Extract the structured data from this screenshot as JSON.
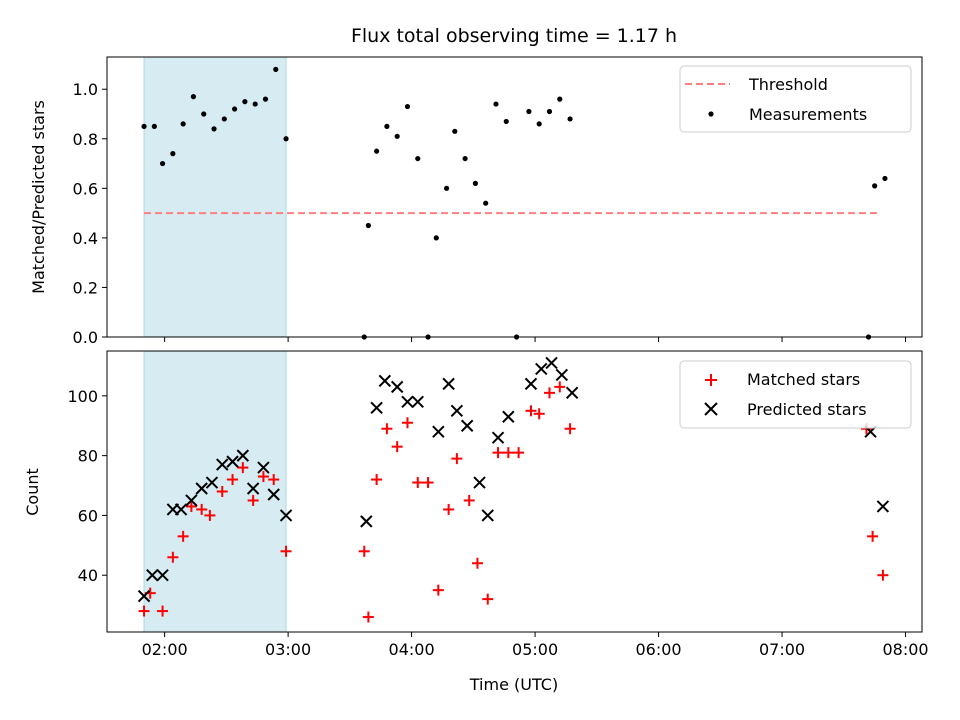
{
  "figure": {
    "title": "Flux total observing time = 1.17 h",
    "xlabel": "Time (UTC)"
  },
  "colors": {
    "shade": "#add8e6",
    "threshold": "#ff7f7f",
    "measurement": "#000000",
    "matched": "#ff0000",
    "predicted": "#000000"
  },
  "chart_data": [
    {
      "type": "scatter",
      "panel": "top",
      "ylabel": "Matched/Predicted stars",
      "xlim": [
        "01:32",
        "08:08"
      ],
      "ylim": [
        0,
        1.13
      ],
      "yticks": [
        0,
        0.2,
        0.4,
        0.6,
        0.8,
        1.0
      ],
      "ytick_labels": [
        "0.0",
        "0.2",
        "0.4",
        "0.6",
        "0.8",
        "1.0"
      ],
      "xticks": [
        "02:00",
        "03:00",
        "04:00",
        "05:00",
        "06:00",
        "07:00",
        "08:00"
      ],
      "shaded_span": [
        "01:50",
        "02:59"
      ],
      "legend": {
        "position": "top-right",
        "entries": [
          "Threshold",
          "Measurements"
        ]
      },
      "threshold": {
        "name": "Threshold",
        "y": 0.5,
        "x": [
          "01:50",
          "07:48"
        ],
        "style": "dashed"
      },
      "series": [
        {
          "name": "Measurements",
          "marker": "dot",
          "points": [
            [
              "01:50",
              0.85
            ],
            [
              "01:55",
              0.85
            ],
            [
              "01:59",
              0.7
            ],
            [
              "02:04",
              0.74
            ],
            [
              "02:09",
              0.86
            ],
            [
              "02:14",
              0.97
            ],
            [
              "02:19",
              0.9
            ],
            [
              "02:24",
              0.84
            ],
            [
              "02:29",
              0.88
            ],
            [
              "02:34",
              0.92
            ],
            [
              "02:39",
              0.95
            ],
            [
              "02:44",
              0.94
            ],
            [
              "02:49",
              0.96
            ],
            [
              "02:54",
              1.08
            ],
            [
              "02:59",
              0.8
            ],
            [
              "03:37",
              0.0
            ],
            [
              "03:39",
              0.45
            ],
            [
              "03:43",
              0.75
            ],
            [
              "03:48",
              0.85
            ],
            [
              "03:53",
              0.81
            ],
            [
              "03:58",
              0.93
            ],
            [
              "04:03",
              0.72
            ],
            [
              "04:08",
              0.0
            ],
            [
              "04:12",
              0.4
            ],
            [
              "04:17",
              0.6
            ],
            [
              "04:21",
              0.83
            ],
            [
              "04:26",
              0.72
            ],
            [
              "04:31",
              0.62
            ],
            [
              "04:36",
              0.54
            ],
            [
              "04:41",
              0.94
            ],
            [
              "04:46",
              0.87
            ],
            [
              "04:51",
              0.0
            ],
            [
              "04:57",
              0.91
            ],
            [
              "05:02",
              0.86
            ],
            [
              "05:07",
              0.91
            ],
            [
              "05:12",
              0.96
            ],
            [
              "05:17",
              0.88
            ],
            [
              "07:42",
              0.0
            ],
            [
              "07:45",
              0.61
            ],
            [
              "07:50",
              0.64
            ]
          ]
        }
      ]
    },
    {
      "type": "scatter",
      "panel": "bottom",
      "ylabel": "Count",
      "xlim": [
        "01:32",
        "08:08"
      ],
      "ylim": [
        21,
        115
      ],
      "yticks": [
        40,
        60,
        80,
        100
      ],
      "ytick_labels": [
        "40",
        "60",
        "80",
        "100"
      ],
      "xticks": [
        "02:00",
        "03:00",
        "04:00",
        "05:00",
        "06:00",
        "07:00",
        "08:00"
      ],
      "xtick_labels": [
        "02:00",
        "03:00",
        "04:00",
        "05:00",
        "06:00",
        "07:00",
        "08:00"
      ],
      "shaded_span": [
        "01:50",
        "02:59"
      ],
      "legend": {
        "position": "top-right",
        "entries": [
          "Matched stars",
          "Predicted stars"
        ]
      },
      "series": [
        {
          "name": "Matched stars",
          "marker": "plus",
          "points": [
            [
              "01:50",
              28
            ],
            [
              "01:53",
              34
            ],
            [
              "01:59",
              28
            ],
            [
              "02:04",
              46
            ],
            [
              "02:09",
              53
            ],
            [
              "02:13",
              63
            ],
            [
              "02:18",
              62
            ],
            [
              "02:22",
              60
            ],
            [
              "02:28",
              68
            ],
            [
              "02:33",
              72
            ],
            [
              "02:38",
              76
            ],
            [
              "02:43",
              65
            ],
            [
              "02:48",
              73
            ],
            [
              "02:53",
              72
            ],
            [
              "02:59",
              48
            ],
            [
              "03:37",
              48
            ],
            [
              "03:39",
              26
            ],
            [
              "03:43",
              72
            ],
            [
              "03:48",
              89
            ],
            [
              "03:53",
              83
            ],
            [
              "03:58",
              91
            ],
            [
              "04:03",
              71
            ],
            [
              "04:08",
              71
            ],
            [
              "04:13",
              35
            ],
            [
              "04:18",
              62
            ],
            [
              "04:22",
              79
            ],
            [
              "04:28",
              65
            ],
            [
              "04:32",
              44
            ],
            [
              "04:37",
              32
            ],
            [
              "04:42",
              81
            ],
            [
              "04:47",
              81
            ],
            [
              "04:52",
              81
            ],
            [
              "04:58",
              95
            ],
            [
              "05:02",
              94
            ],
            [
              "05:07",
              101
            ],
            [
              "05:12",
              103
            ],
            [
              "05:17",
              89
            ],
            [
              "07:41",
              89
            ],
            [
              "07:44",
              53
            ],
            [
              "07:49",
              40
            ]
          ]
        },
        {
          "name": "Predicted stars",
          "marker": "x",
          "points": [
            [
              "01:50",
              33
            ],
            [
              "01:54",
              40
            ],
            [
              "01:59",
              40
            ],
            [
              "02:04",
              62
            ],
            [
              "02:08",
              62
            ],
            [
              "02:13",
              65
            ],
            [
              "02:18",
              69
            ],
            [
              "02:23",
              71
            ],
            [
              "02:28",
              77
            ],
            [
              "02:33",
              78
            ],
            [
              "02:38",
              80
            ],
            [
              "02:43",
              69
            ],
            [
              "02:48",
              76
            ],
            [
              "02:53",
              67
            ],
            [
              "02:59",
              60
            ],
            [
              "03:38",
              58
            ],
            [
              "03:43",
              96
            ],
            [
              "03:47",
              105
            ],
            [
              "03:53",
              103
            ],
            [
              "03:58",
              98
            ],
            [
              "04:03",
              98
            ],
            [
              "04:13",
              88
            ],
            [
              "04:18",
              104
            ],
            [
              "04:22",
              95
            ],
            [
              "04:27",
              90
            ],
            [
              "04:33",
              71
            ],
            [
              "04:37",
              60
            ],
            [
              "04:42",
              86
            ],
            [
              "04:47",
              93
            ],
            [
              "04:58",
              104
            ],
            [
              "05:03",
              109
            ],
            [
              "05:08",
              111
            ],
            [
              "05:13",
              107
            ],
            [
              "05:18",
              101
            ],
            [
              "07:43",
              88
            ],
            [
              "07:49",
              63
            ]
          ]
        }
      ]
    }
  ]
}
